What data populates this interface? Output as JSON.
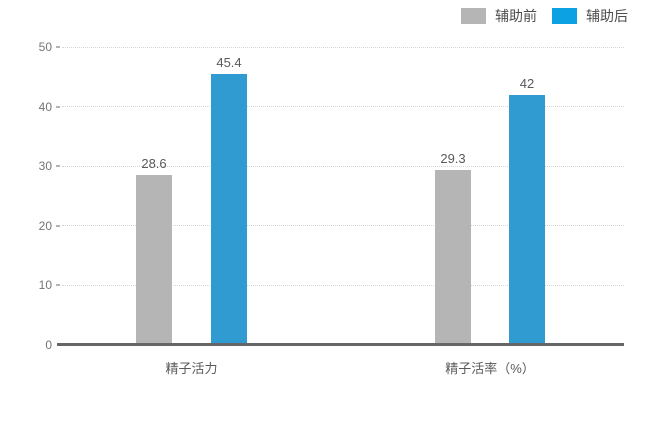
{
  "legend": {
    "items": [
      {
        "label": "辅助前",
        "color": "#b5b5b5"
      },
      {
        "label": "辅助后",
        "color": "#0ba1e2"
      }
    ]
  },
  "chart_data": {
    "type": "bar",
    "title": "",
    "categories": [
      "精子活力",
      "精子活率（%）"
    ],
    "series": [
      {
        "name": "辅助前",
        "color": "#b5b5b5",
        "values": [
          28.6,
          29.3
        ]
      },
      {
        "name": "辅助后",
        "color": "#2f9bd1",
        "values": [
          45.4,
          42
        ]
      }
    ],
    "xlabel": "",
    "ylabel": "",
    "ylim": [
      0,
      50
    ],
    "yticks": [
      0,
      10,
      20,
      30,
      40,
      50
    ],
    "grid": {
      "horizontal": true,
      "style": "dotted",
      "color": "#d6d6d6"
    },
    "legend_position": "top-right",
    "value_labels_shown": true,
    "colors": {
      "axis_line": "#666666",
      "tick_label": "#757575",
      "value_label": "#595959",
      "category_label": "#595959",
      "background": "#ffffff"
    }
  }
}
